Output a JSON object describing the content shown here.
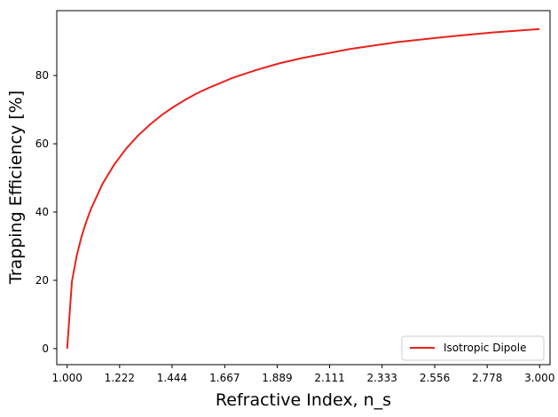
{
  "chart_data": {
    "type": "line",
    "title": "",
    "xlabel": "Refractive Index, n_s",
    "ylabel": "Trapping Efficiency [%]",
    "xlim": [
      0.956,
      3.044
    ],
    "ylim": [
      -4.7,
      99
    ],
    "x_ticks": [
      1.0,
      1.222,
      1.444,
      1.667,
      1.889,
      2.111,
      2.333,
      2.556,
      2.778,
      3.0
    ],
    "x_tick_labels": [
      "1.000",
      "1.222",
      "1.444",
      "1.667",
      "1.889",
      "2.111",
      "2.333",
      "2.556",
      "2.778",
      "3.000"
    ],
    "y_ticks": [
      0,
      20,
      40,
      60,
      80
    ],
    "y_tick_labels": [
      "0",
      "20",
      "40",
      "60",
      "80"
    ],
    "grid": false,
    "legend_position": "lower-right",
    "series": [
      {
        "name": "Isotropic Dipole",
        "color": "#e8221a",
        "x": [
          1.0,
          1.02,
          1.04,
          1.06,
          1.08,
          1.1,
          1.15,
          1.2,
          1.25,
          1.3,
          1.35,
          1.4,
          1.45,
          1.5,
          1.55,
          1.6,
          1.7,
          1.8,
          1.9,
          2.0,
          2.2,
          2.4,
          2.6,
          2.8,
          3.0
        ],
        "y": [
          0,
          19.6,
          27.1,
          32.6,
          37.0,
          40.8,
          48.3,
          54.0,
          58.6,
          62.4,
          65.6,
          68.4,
          70.8,
          72.9,
          74.8,
          76.4,
          79.3,
          81.6,
          83.6,
          85.2,
          87.8,
          89.8,
          91.3,
          92.6,
          93.6
        ]
      }
    ]
  }
}
